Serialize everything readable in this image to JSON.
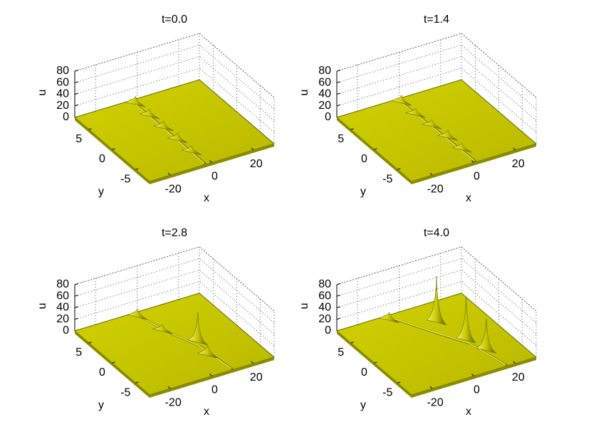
{
  "chart_data": [
    {
      "type": "surface",
      "title": "t=0.0",
      "xlabel": "x",
      "ylabel": "y",
      "zlabel": "u",
      "color": "#c8c800",
      "xlim": [
        -30,
        30
      ],
      "ylim": [
        -8,
        8
      ],
      "zlim": [
        0,
        80
      ],
      "xticks": [
        -20,
        0,
        20
      ],
      "yticks": [
        -5,
        0,
        5
      ],
      "zticks": [
        0,
        20,
        40,
        60,
        80
      ],
      "grid": true
    },
    {
      "type": "surface",
      "title": "t=1.4",
      "xlabel": "x",
      "ylabel": "y",
      "zlabel": "u",
      "color": "#c8c800",
      "xlim": [
        -30,
        30
      ],
      "ylim": [
        -8,
        8
      ],
      "zlim": [
        0,
        80
      ],
      "xticks": [
        -20,
        0,
        20
      ],
      "yticks": [
        -5,
        0,
        5
      ],
      "zticks": [
        0,
        20,
        40,
        60,
        80
      ],
      "grid": true
    },
    {
      "type": "surface",
      "title": "t=2.8",
      "xlabel": "x",
      "ylabel": "y",
      "zlabel": "u",
      "color": "#c8c800",
      "xlim": [
        -30,
        30
      ],
      "ylim": [
        -8,
        8
      ],
      "zlim": [
        0,
        80
      ],
      "xticks": [
        -20,
        0,
        20
      ],
      "yticks": [
        -5,
        0,
        5
      ],
      "zticks": [
        0,
        20,
        40,
        60,
        80
      ],
      "grid": true
    },
    {
      "type": "surface",
      "title": "t=4.0",
      "xlabel": "x",
      "ylabel": "y",
      "zlabel": "u",
      "color": "#c8c800",
      "xlim": [
        -30,
        30
      ],
      "ylim": [
        -8,
        8
      ],
      "zlim": [
        0,
        80
      ],
      "xticks": [
        -20,
        0,
        20
      ],
      "yticks": [
        -5,
        0,
        5
      ],
      "zticks": [
        0,
        20,
        40,
        60,
        80
      ],
      "grid": true
    }
  ]
}
